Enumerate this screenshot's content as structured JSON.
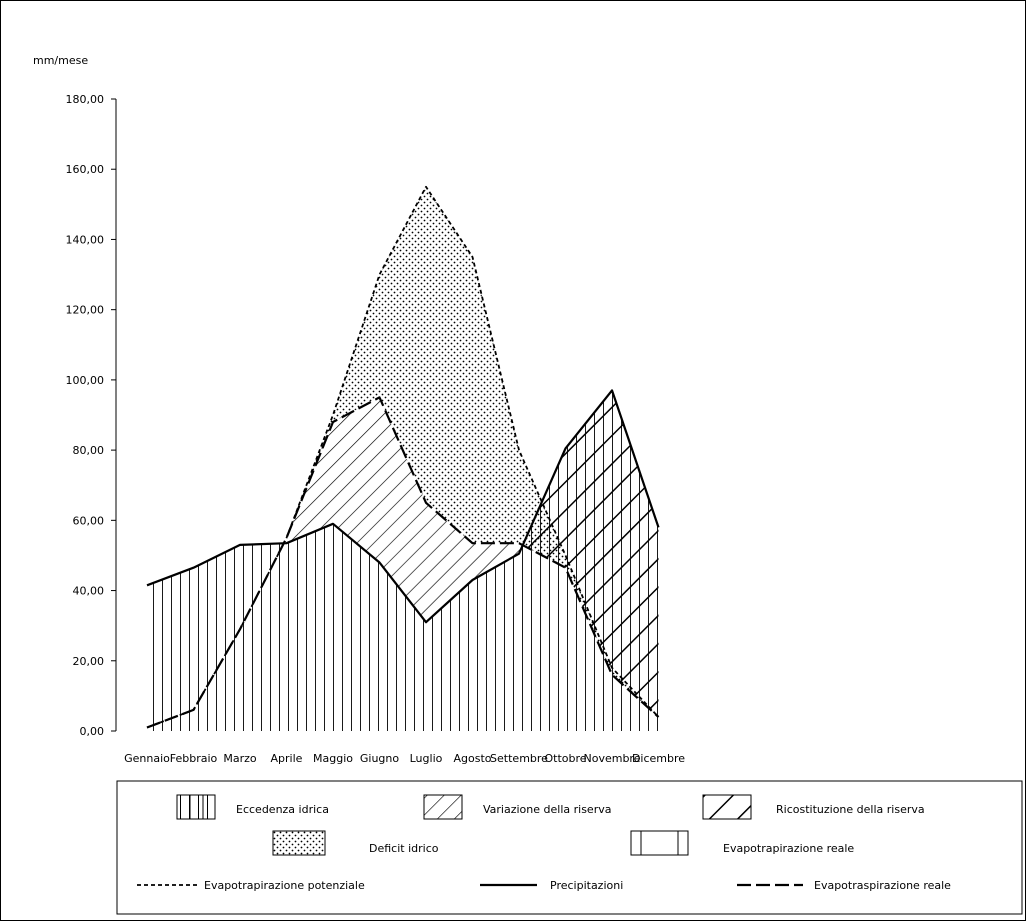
{
  "chart_data": {
    "type": "area",
    "ylabel": "mm/mese",
    "ylim": [
      0,
      180
    ],
    "yticks": [
      "0,00",
      "20,00",
      "40,00",
      "60,00",
      "80,00",
      "100,00",
      "120,00",
      "140,00",
      "160,00",
      "180,00"
    ],
    "categories": [
      "Gennaio",
      "Febbraio",
      "Marzo",
      "Aprile",
      "Maggio",
      "Giugno",
      "Luglio",
      "Agosto",
      "Settembre",
      "Ottobre",
      "Novembre",
      "Dicembre"
    ],
    "series": [
      {
        "name": "Evapotrapirazione potenziale",
        "values": [
          1,
          6,
          29,
          55,
          90,
          130,
          155,
          135,
          80,
          50,
          18,
          4
        ]
      },
      {
        "name": "Precipitazioni",
        "values": [
          41.5,
          46.5,
          53,
          53.5,
          59,
          48,
          31,
          43,
          50.5,
          80.5,
          97,
          58
        ]
      },
      {
        "name": "Evapotraspirazione reale",
        "values": [
          1,
          6,
          29,
          55,
          88,
          95,
          65,
          53.5,
          53.5,
          46.5,
          16,
          4
        ]
      }
    ],
    "legend": {
      "patterns": [
        {
          "label": "Eccedenza idrica",
          "swatch": "vlines"
        },
        {
          "label": "Variazione della riserva",
          "swatch": "thin-diagonal"
        },
        {
          "label": "Ricostituzione della riserva",
          "swatch": "thick-diagonal"
        },
        {
          "label": "Deficit idrico",
          "swatch": "dots"
        },
        {
          "label": "Evapotrapirazione reale",
          "swatch": "box"
        }
      ],
      "lines": [
        {
          "label": "Evapotrapirazione potenziale",
          "style": "dashed"
        },
        {
          "label": "Precipitazioni",
          "style": "solid"
        },
        {
          "label": "Evapotraspirazione reale",
          "style": "long-dash"
        }
      ],
      "placement": "bottom"
    }
  }
}
